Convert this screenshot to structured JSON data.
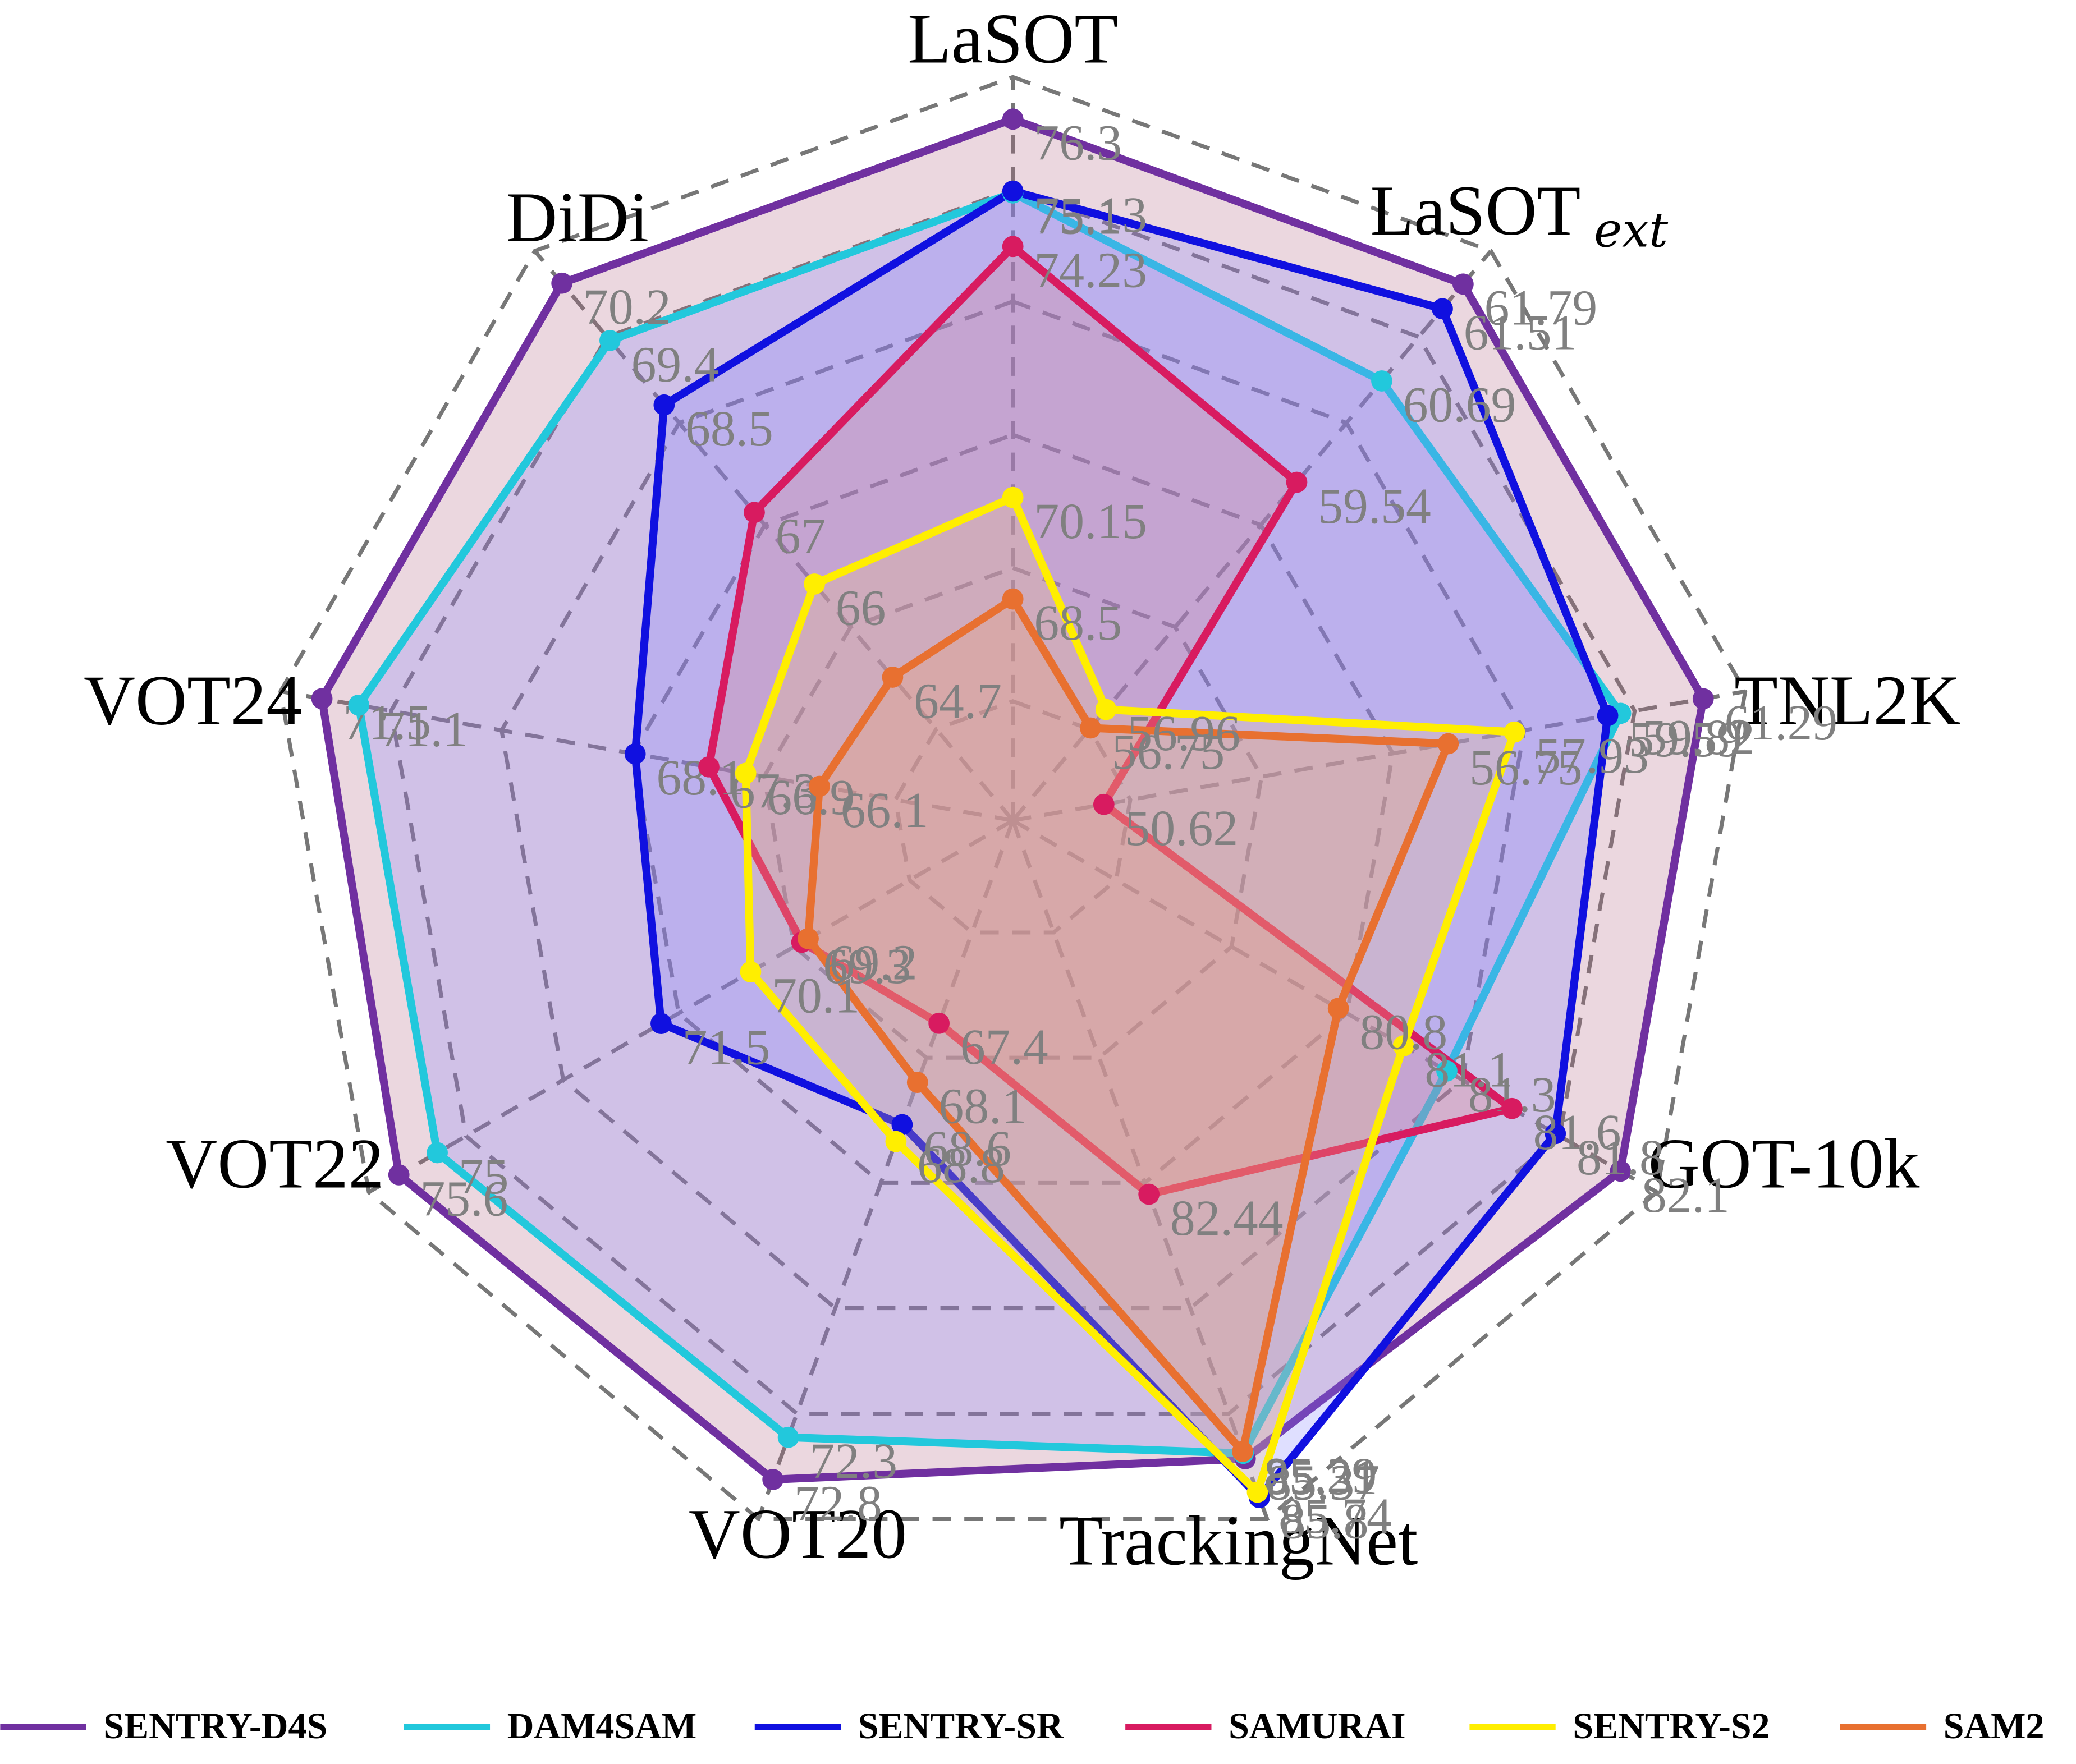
{
  "chart_data": {
    "type": "radar",
    "categories": [
      {
        "name": "LaSOT"
      },
      {
        "name": "LaSOT",
        "sub": "ext"
      },
      {
        "name": "TNL2K"
      },
      {
        "name": "GOT-10k"
      },
      {
        "name": "TrackingNet"
      },
      {
        "name": "VOT20"
      },
      {
        "name": "VOT22"
      },
      {
        "name": "VOT24"
      },
      {
        "name": "DiDi"
      }
    ],
    "ylims": [
      [
        64.9,
        76.3
      ],
      [
        55.7,
        61.8
      ],
      [
        49,
        61.3
      ],
      [
        79.3,
        82.1
      ],
      [
        78.3,
        85.6
      ],
      [
        65,
        72.8
      ],
      [
        66,
        75.5
      ],
      [
        64,
        71.5
      ],
      [
        62.7,
        70.2
      ]
    ],
    "grid": true,
    "series": [
      {
        "name": "SENTRY-D4S",
        "color": "#7030a0",
        "fill": "#b0607f",
        "values": [
          76.3,
          61.79,
          61.29,
          82.1,
          85.37,
          72.8,
          75.6,
          71.5,
          70.2
        ]
      },
      {
        "name": "DAM4SAM",
        "color": "#22c8dc",
        "fill": "#8080ff",
        "values": [
          75.1,
          60.69,
          59.82,
          81.3,
          85.31,
          72.3,
          75,
          71.1,
          69.4
        ]
      },
      {
        "name": "SENTRY-SR",
        "color": "#1010e0",
        "fill": "#8080ff",
        "values": [
          75.13,
          61.51,
          59.59,
          81.8,
          85.8,
          68.6,
          71.5,
          68.1,
          68.5
        ]
      },
      {
        "name": "SAMURAI",
        "color": "#d81b60",
        "fill": "#e08080",
        "values": [
          74.23,
          59.54,
          50.62,
          81.6,
          82.44,
          67.4,
          69.3,
          67.3,
          67
        ]
      },
      {
        "name": "SENTRY-S2",
        "color": "#ffee00",
        "fill": "#f0c080",
        "values": [
          70.15,
          56.96,
          57.93,
          81.1,
          85.74,
          68.8,
          70.1,
          66.9,
          66
        ]
      },
      {
        "name": "SAM2",
        "color": "#e87030",
        "fill": "#f0a070",
        "values": [
          68.5,
          56.75,
          56.75,
          80.8,
          85.29,
          68.1,
          69.2,
          66.1,
          64.7
        ]
      }
    ]
  }
}
